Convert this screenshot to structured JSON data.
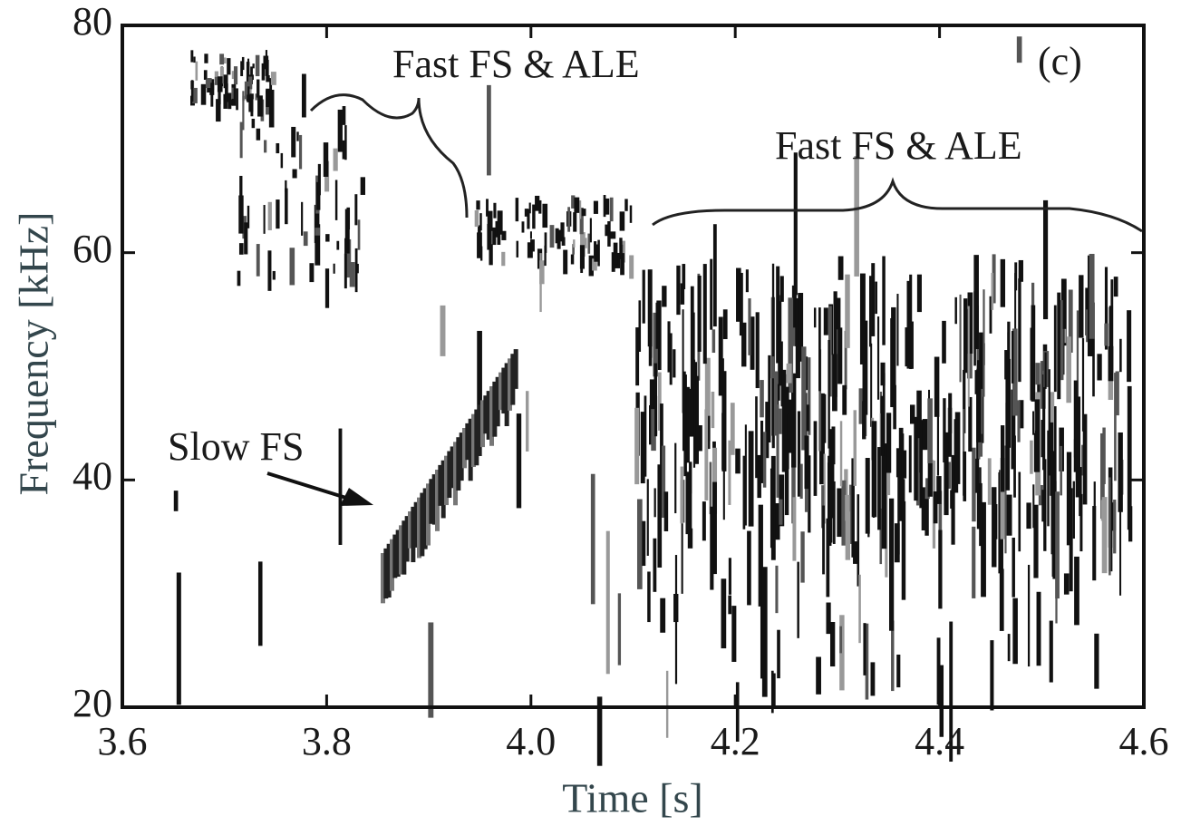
{
  "chart_data": {
    "type": "spectrogram",
    "xlabel": "Time [s]",
    "ylabel": "Frequency [kHz]",
    "xlim": [
      3.6,
      4.6
    ],
    "xticks": [
      3.6,
      3.8,
      {
        "value": 4,
        "label": "4.0"
      },
      4.2,
      4.4,
      4.6
    ],
    "ylim": [
      20,
      80
    ],
    "yticks": [
      20,
      40,
      60,
      80
    ],
    "annotations": [
      "Fast FS & ALE",
      "Fast FS & ALE",
      "Slow FS",
      "(c)"
    ]
  }
}
